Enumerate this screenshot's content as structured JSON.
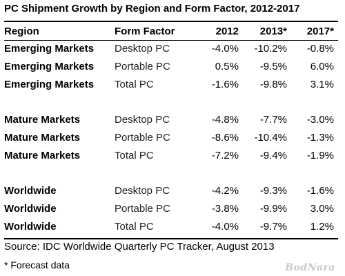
{
  "title": "PC Shipment Growth by Region and Form Factor, 2012-2017",
  "table": {
    "columns": [
      "Region",
      "Form Factor",
      "2012",
      "2013*",
      "2017*"
    ],
    "groups": [
      {
        "rows": [
          {
            "region": "Emerging Markets",
            "form_factor": "Desktop PC",
            "y2012": "-4.0%",
            "y2013": "-10.2%",
            "y2017": "-0.8%"
          },
          {
            "region": "Emerging Markets",
            "form_factor": "Portable PC",
            "y2012": "0.5%",
            "y2013": "-9.5%",
            "y2017": "6.0%"
          },
          {
            "region": "Emerging Markets",
            "form_factor": "Total PC",
            "y2012": "-1.6%",
            "y2013": "-9.8%",
            "y2017": "3.1%"
          }
        ]
      },
      {
        "rows": [
          {
            "region": "Mature Markets",
            "form_factor": "Desktop PC",
            "y2012": "-4.8%",
            "y2013": "-7.7%",
            "y2017": "-3.0%"
          },
          {
            "region": "Mature Markets",
            "form_factor": "Portable PC",
            "y2012": "-8.6%",
            "y2013": "-10.4%",
            "y2017": "-1.3%"
          },
          {
            "region": "Mature Markets",
            "form_factor": "Total PC",
            "y2012": "-7.2%",
            "y2013": "-9.4%",
            "y2017": "-1.9%"
          }
        ]
      },
      {
        "rows": [
          {
            "region": "Worldwide",
            "form_factor": "Desktop PC",
            "y2012": "-4.2%",
            "y2013": "-9.3%",
            "y2017": "-1.6%"
          },
          {
            "region": "Worldwide",
            "form_factor": "Portable PC",
            "y2012": "-3.8%",
            "y2013": "-9.9%",
            "y2017": "3.0%"
          },
          {
            "region": "Worldwide",
            "form_factor": "Total PC",
            "y2012": "-4.0%",
            "y2013": "-9.7%",
            "y2017": "1.2%"
          }
        ]
      }
    ]
  },
  "source": "Source: IDC Worldwide Quarterly PC Tracker, August 2013",
  "footnote": "* Forecast data",
  "watermark": "BodNara"
}
